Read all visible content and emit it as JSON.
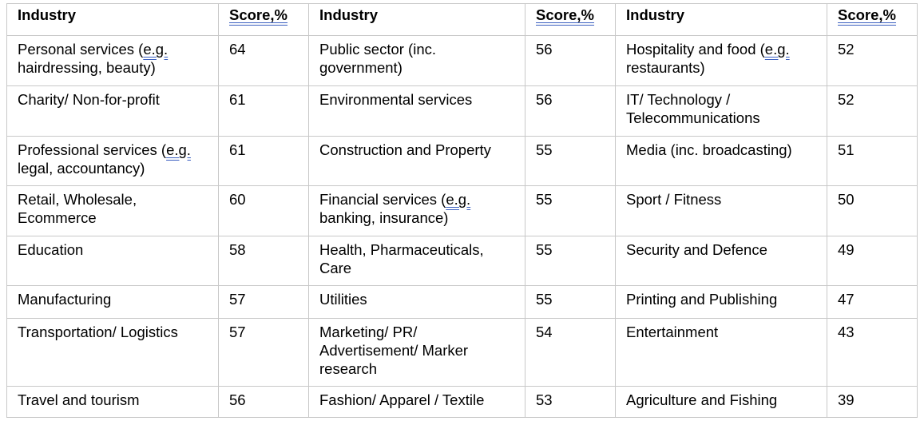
{
  "headers": {
    "industry": "Industry",
    "score": "Score,%"
  },
  "rows": [
    [
      {
        "pre": "Personal services (",
        "sp": "e.g.",
        "post": " hairdressing, beauty)",
        "score": "64"
      },
      {
        "pre": "Public sector (inc. government)",
        "sp": "",
        "post": "",
        "score": "56"
      },
      {
        "pre": "Hospitality and food (",
        "sp": "e.g.",
        "post": " restaurants)",
        "score": "52"
      }
    ],
    [
      {
        "pre": "Charity/ Non-for-profit",
        "sp": "",
        "post": "",
        "score": "61"
      },
      {
        "pre": "Environmental services",
        "sp": "",
        "post": "",
        "score": "56"
      },
      {
        "pre": "IT/ Technology / Telecommunications",
        "sp": "",
        "post": "",
        "score": "52"
      }
    ],
    [
      {
        "pre": "Professional services (",
        "sp": "e.g.",
        "post": " legal, accountancy)",
        "score": "61"
      },
      {
        "pre": "Construction and Property",
        "sp": "",
        "post": "",
        "score": "55"
      },
      {
        "pre": "Media (inc. broadcasting)",
        "sp": "",
        "post": "",
        "score": "51"
      }
    ],
    [
      {
        "pre": "Retail, Wholesale, Ecommerce",
        "sp": "",
        "post": "",
        "score": "60"
      },
      {
        "pre": "Financial services (",
        "sp": "e.g.",
        "post": " banking, insurance)",
        "score": "55"
      },
      {
        "pre": "Sport / Fitness",
        "sp": "",
        "post": "",
        "score": "50"
      }
    ],
    [
      {
        "pre": "Education",
        "sp": "",
        "post": "",
        "score": "58"
      },
      {
        "pre": "Health, Pharmaceuticals, Care",
        "sp": "",
        "post": "",
        "score": "55"
      },
      {
        "pre": "Security and Defence",
        "sp": "",
        "post": "",
        "score": "49"
      }
    ],
    [
      {
        "pre": "Manufacturing",
        "sp": "",
        "post": "",
        "score": "57"
      },
      {
        "pre": "Utilities",
        "sp": "",
        "post": "",
        "score": "55"
      },
      {
        "pre": "Printing and Publishing",
        "sp": "",
        "post": "",
        "score": "47"
      }
    ],
    [
      {
        "pre": "Transportation/ Logistics",
        "sp": "",
        "post": "",
        "score": "57"
      },
      {
        "pre": "Marketing/ PR/ Advertisement/ Marker research",
        "sp": "",
        "post": "",
        "score": "54"
      },
      {
        "pre": "Entertainment",
        "sp": "",
        "post": "",
        "score": "43"
      }
    ],
    [
      {
        "pre": "Travel and tourism",
        "sp": "",
        "post": "",
        "score": "56"
      },
      {
        "pre": "Fashion/ Apparel / Textile",
        "sp": "",
        "post": "",
        "score": "53"
      },
      {
        "pre": "Agriculture and Fishing",
        "sp": "",
        "post": "",
        "score": "39"
      }
    ]
  ]
}
